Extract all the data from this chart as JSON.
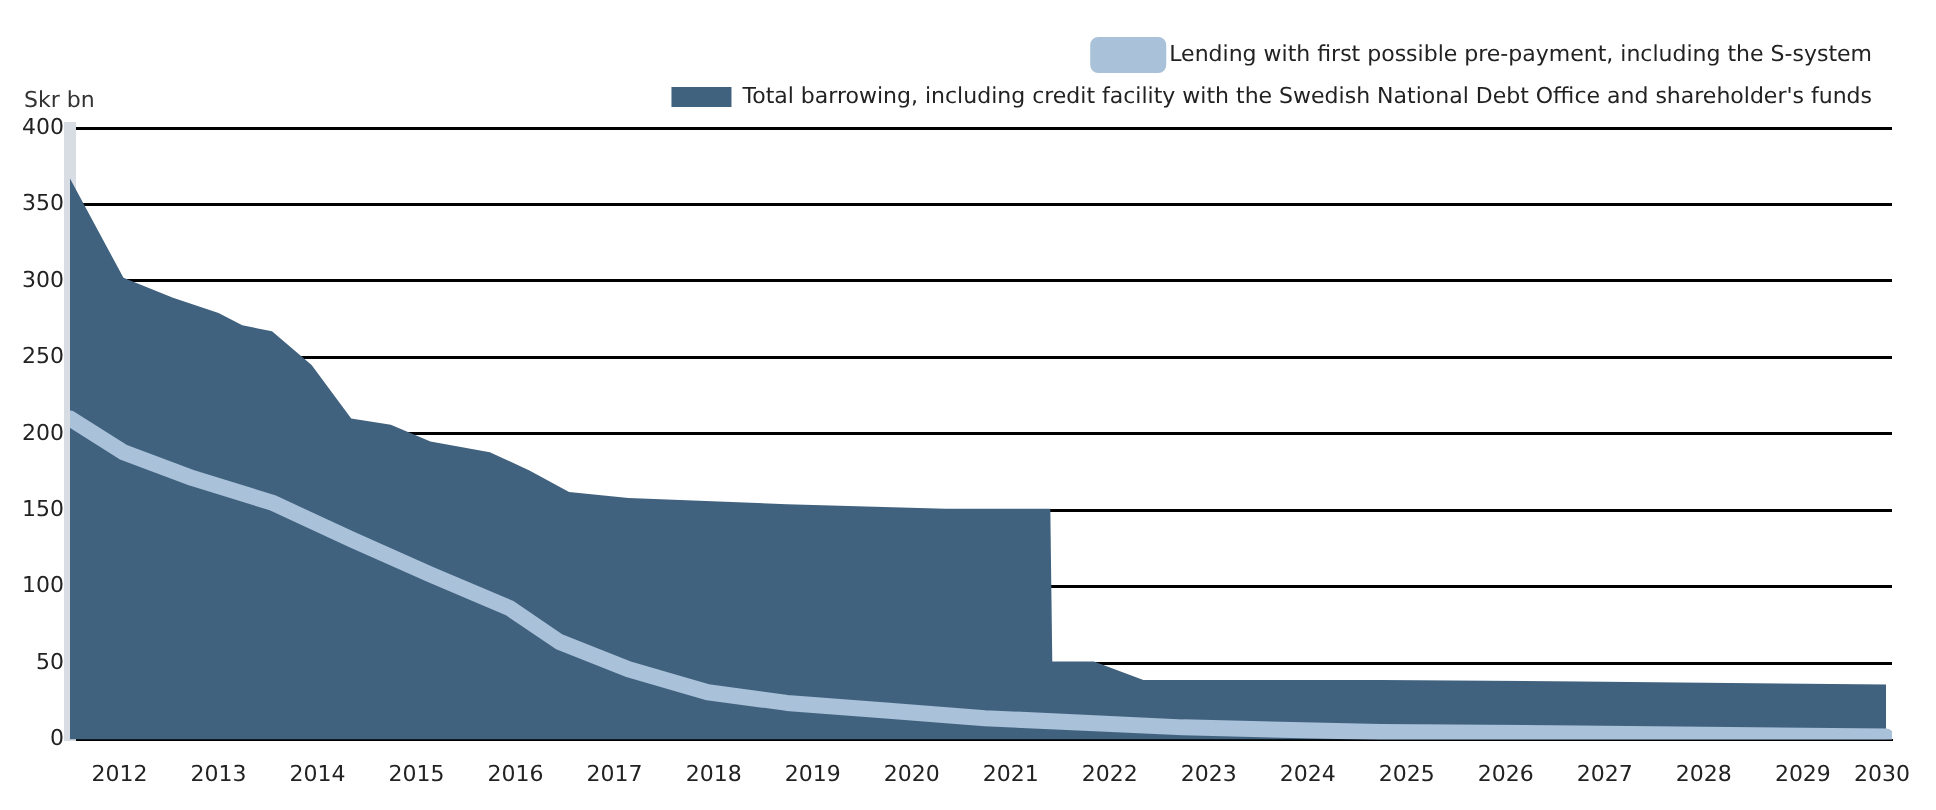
{
  "chart_data": {
    "type": "area",
    "ylabel": "Skr bn",
    "xlim": [
      2012,
      2030.4
    ],
    "xticks": [
      {
        "value": 2012.5,
        "label": "2012"
      },
      {
        "value": 2013.5,
        "label": "2013"
      },
      {
        "value": 2014.5,
        "label": "2014"
      },
      {
        "value": 2015.5,
        "label": "2015"
      },
      {
        "value": 2016.5,
        "label": "2016"
      },
      {
        "value": 2017.5,
        "label": "2017"
      },
      {
        "value": 2018.5,
        "label": "2018"
      },
      {
        "value": 2019.5,
        "label": "2019"
      },
      {
        "value": 2020.5,
        "label": "2020"
      },
      {
        "value": 2021.5,
        "label": "2021"
      },
      {
        "value": 2022.5,
        "label": "2022"
      },
      {
        "value": 2023.5,
        "label": "2023"
      },
      {
        "value": 2024.5,
        "label": "2024"
      },
      {
        "value": 2025.5,
        "label": "2025"
      },
      {
        "value": 2026.5,
        "label": "2026"
      },
      {
        "value": 2027.5,
        "label": "2027"
      },
      {
        "value": 2028.5,
        "label": "2028"
      },
      {
        "value": 2029.5,
        "label": "2029"
      },
      {
        "value": 2030.3,
        "label": "2030"
      }
    ],
    "ylim": [
      0,
      400
    ],
    "yticks": [
      0,
      50,
      100,
      150,
      200,
      250,
      300,
      350,
      400
    ],
    "grid": "y",
    "legend": "top right",
    "series": [
      {
        "name": "Total barrowing, including credit facility with the Swedish National Debt Office and shareholder's funds",
        "color": "#41627f",
        "x": [
          2012.0,
          2012.54,
          2013.04,
          2013.5,
          2013.74,
          2014.04,
          2014.44,
          2014.84,
          2015.24,
          2015.64,
          2016.24,
          2016.64,
          2017.04,
          2017.64,
          2019.24,
          2020.84,
          2021.9,
          2021.92,
          2022.34,
          2022.84,
          2025.24,
          2027.24,
          2030.34
        ],
        "values": [
          367,
          302,
          289,
          279,
          271,
          267,
          245,
          210,
          206,
          195,
          188,
          176,
          162,
          158,
          154,
          151,
          151,
          51,
          51,
          39,
          39,
          38,
          36
        ]
      },
      {
        "name": "Lending with first possible pre-payment, including the S-system",
        "type": "line",
        "color": "#a9c1d9",
        "x": [
          2012.0,
          2012.54,
          2013.24,
          2014.04,
          2014.84,
          2015.64,
          2016.44,
          2016.94,
          2017.64,
          2018.44,
          2019.24,
          2020.24,
          2021.24,
          2022.24,
          2023.24,
          2025.24,
          2027.24,
          2030.34
        ],
        "values": [
          210,
          188,
          171,
          155,
          131,
          108,
          86,
          64,
          46,
          31,
          24,
          19,
          14,
          11,
          8,
          5,
          4,
          2
        ]
      }
    ]
  }
}
